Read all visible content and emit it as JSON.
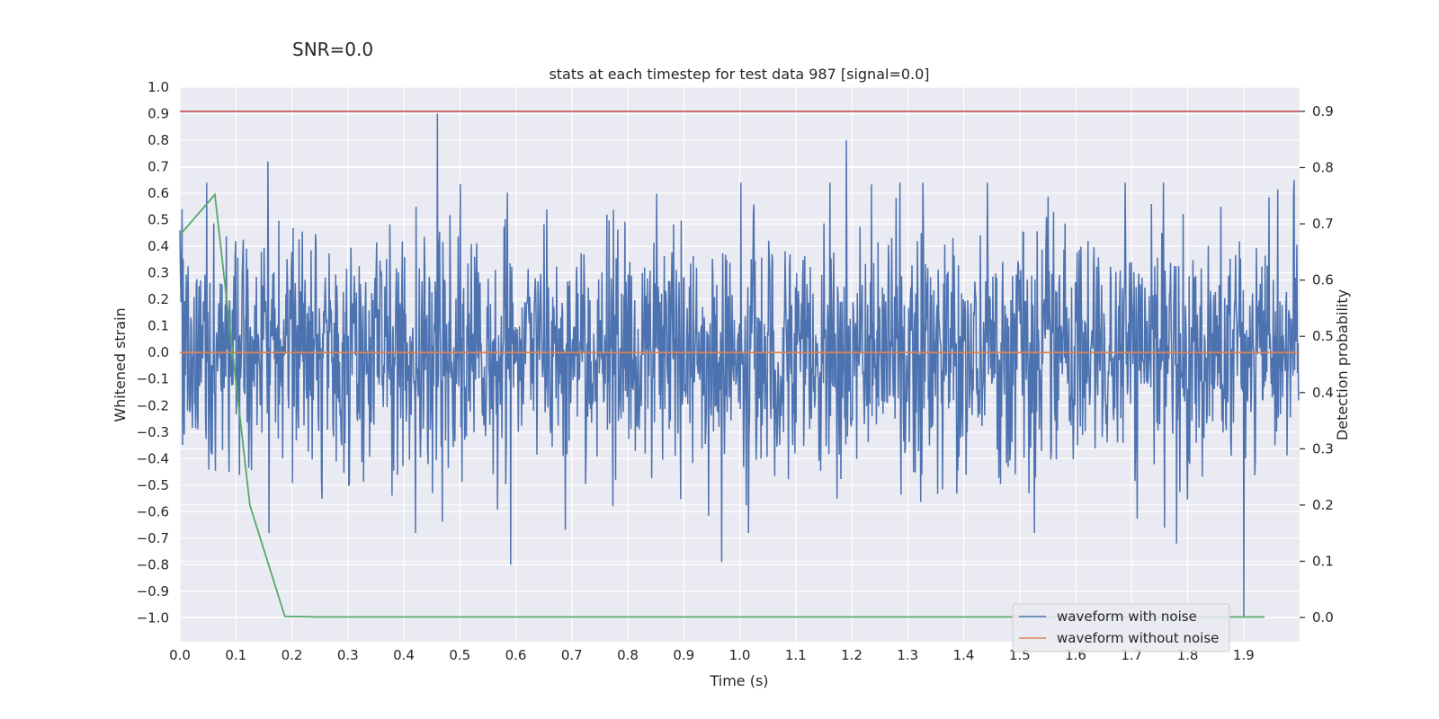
{
  "chart_data": {
    "type": "line",
    "suptitle": "SNR=0.0",
    "title": "stats at each timestep for test data 987 [signal=0.0]",
    "xlabel": "Time (s)",
    "ylabel": "Whitened strain",
    "ylabel_right": "Detection probability",
    "xlim": [
      0.0,
      2.0
    ],
    "ylim": [
      -1.09,
      1.0
    ],
    "ylim_right": [
      -0.043,
      0.943
    ],
    "x_ticks": [
      "0.0",
      "0.1",
      "0.2",
      "0.3",
      "0.4",
      "0.5",
      "0.6",
      "0.7",
      "0.8",
      "0.9",
      "1.0",
      "1.1",
      "1.2",
      "1.3",
      "1.4",
      "1.5",
      "1.6",
      "1.7",
      "1.8",
      "1.9"
    ],
    "y_ticks": [
      "1.0",
      "0.9",
      "0.8",
      "0.7",
      "0.6",
      "0.5",
      "0.4",
      "0.3",
      "0.2",
      "0.1",
      "0.0",
      "−0.1",
      "−0.2",
      "−0.3",
      "−0.4",
      "−0.5",
      "−0.6",
      "−0.7",
      "−0.8",
      "−0.9",
      "−1.0"
    ],
    "y_ticks_right": [
      "0.9",
      "0.8",
      "0.7",
      "0.6",
      "0.5",
      "0.4",
      "0.3",
      "0.2",
      "0.1",
      "0.0"
    ],
    "threshold": {
      "axis": "right",
      "value": 0.9,
      "color": "#c44e52"
    },
    "series": [
      {
        "name": "waveform with noise",
        "axis": "left",
        "color": "#4c72b0",
        "noise_std": 0.22,
        "samples": 2048,
        "spikes": [
          {
            "x": 0.0,
            "y": 0.46
          },
          {
            "x": 0.157,
            "y": 0.72
          },
          {
            "x": 0.46,
            "y": 0.9
          },
          {
            "x": 0.591,
            "y": -0.8
          },
          {
            "x": 0.968,
            "y": -0.79
          },
          {
            "x": 1.19,
            "y": 0.8
          },
          {
            "x": 1.78,
            "y": -0.72
          },
          {
            "x": 1.9,
            "y": -1.0
          },
          {
            "x": 1.99,
            "y": 0.65
          }
        ]
      },
      {
        "name": "waveform without noise",
        "axis": "left",
        "color": "#dd8452",
        "x": [
          0.0,
          2.0
        ],
        "y": [
          0.0,
          0.0
        ]
      },
      {
        "name": "detection probability",
        "axis": "right",
        "color": "#55a868",
        "x": [
          0.0,
          0.0625,
          0.125,
          0.1875,
          0.25,
          0.5,
          1.0,
          1.5,
          1.9375
        ],
        "y": [
          0.68,
          0.752,
          0.2,
          0.002,
          0.001,
          0.001,
          0.001,
          0.001,
          0.001
        ]
      }
    ],
    "legend": {
      "position": "lower-right",
      "entries": [
        "waveform with noise",
        "waveform without noise"
      ]
    },
    "colors": {
      "background": "#eaeaf2",
      "grid": "#ffffff",
      "text": "#262626"
    }
  }
}
